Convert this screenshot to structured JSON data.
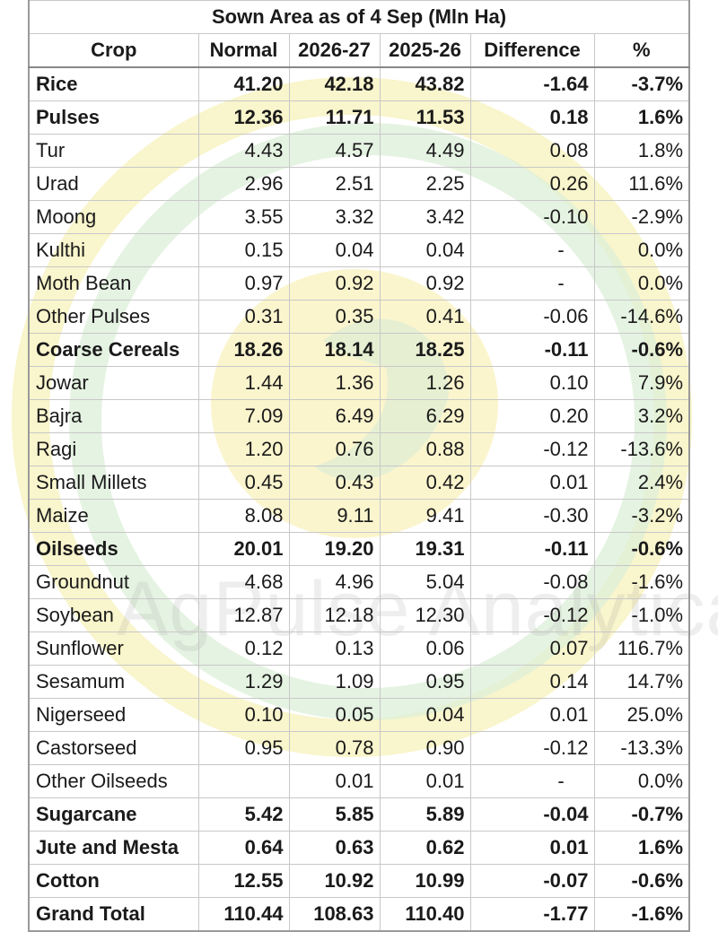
{
  "title": "Sown Area as of 4 Sep (Mln Ha)",
  "watermark": "AgPulse Analytica",
  "colors": {
    "watermark_yellow": "#f7eeab",
    "watermark_green": "#d9ecd2",
    "grid": "#c8c8c8"
  },
  "headers": {
    "crop": "Crop",
    "normal": "Normal",
    "y1": "2026-27",
    "y2": "2025-26",
    "diff": "Difference",
    "pct": "%"
  },
  "rows": [
    {
      "crop": "Rice",
      "normal": "41.20",
      "y1": "42.18",
      "y2": "43.82",
      "diff": "-1.64",
      "pct": "-3.7%",
      "bold": true
    },
    {
      "crop": "Pulses",
      "normal": "12.36",
      "y1": "11.71",
      "y2": "11.53",
      "diff": "0.18",
      "pct": "1.6%",
      "bold": true
    },
    {
      "crop": "Tur",
      "normal": "4.43",
      "y1": "4.57",
      "y2": "4.49",
      "diff": "0.08",
      "pct": "1.8%",
      "bold": false
    },
    {
      "crop": "Urad",
      "normal": "2.96",
      "y1": "2.51",
      "y2": "2.25",
      "diff": "0.26",
      "pct": "11.6%",
      "bold": false
    },
    {
      "crop": "Moong",
      "normal": "3.55",
      "y1": "3.32",
      "y2": "3.42",
      "diff": "-0.10",
      "pct": "-2.9%",
      "bold": false
    },
    {
      "crop": "Kulthi",
      "normal": "0.15",
      "y1": "0.04",
      "y2": "0.04",
      "diff": "-",
      "pct": "0.0%",
      "bold": false
    },
    {
      "crop": "Moth Bean",
      "normal": "0.97",
      "y1": "0.92",
      "y2": "0.92",
      "diff": "-",
      "pct": "0.0%",
      "bold": false
    },
    {
      "crop": "Other Pulses",
      "normal": "0.31",
      "y1": "0.35",
      "y2": "0.41",
      "diff": "-0.06",
      "pct": "-14.6%",
      "bold": false
    },
    {
      "crop": "Coarse Cereals",
      "normal": "18.26",
      "y1": "18.14",
      "y2": "18.25",
      "diff": "-0.11",
      "pct": "-0.6%",
      "bold": true
    },
    {
      "crop": "Jowar",
      "normal": "1.44",
      "y1": "1.36",
      "y2": "1.26",
      "diff": "0.10",
      "pct": "7.9%",
      "bold": false
    },
    {
      "crop": "Bajra",
      "normal": "7.09",
      "y1": "6.49",
      "y2": "6.29",
      "diff": "0.20",
      "pct": "3.2%",
      "bold": false
    },
    {
      "crop": "Ragi",
      "normal": "1.20",
      "y1": "0.76",
      "y2": "0.88",
      "diff": "-0.12",
      "pct": "-13.6%",
      "bold": false
    },
    {
      "crop": "Small Millets",
      "normal": "0.45",
      "y1": "0.43",
      "y2": "0.42",
      "diff": "0.01",
      "pct": "2.4%",
      "bold": false
    },
    {
      "crop": "Maize",
      "normal": "8.08",
      "y1": "9.11",
      "y2": "9.41",
      "diff": "-0.30",
      "pct": "-3.2%",
      "bold": false
    },
    {
      "crop": "Oilseeds",
      "normal": "20.01",
      "y1": "19.20",
      "y2": "19.31",
      "diff": "-0.11",
      "pct": "-0.6%",
      "bold": true
    },
    {
      "crop": "Groundnut",
      "normal": "4.68",
      "y1": "4.96",
      "y2": "5.04",
      "diff": "-0.08",
      "pct": "-1.6%",
      "bold": false
    },
    {
      "crop": "Soybean",
      "normal": "12.87",
      "y1": "12.18",
      "y2": "12.30",
      "diff": "-0.12",
      "pct": "-1.0%",
      "bold": false
    },
    {
      "crop": "Sunflower",
      "normal": "0.12",
      "y1": "0.13",
      "y2": "0.06",
      "diff": "0.07",
      "pct": "116.7%",
      "bold": false
    },
    {
      "crop": "Sesamum",
      "normal": "1.29",
      "y1": "1.09",
      "y2": "0.95",
      "diff": "0.14",
      "pct": "14.7%",
      "bold": false
    },
    {
      "crop": "Nigerseed",
      "normal": "0.10",
      "y1": "0.05",
      "y2": "0.04",
      "diff": "0.01",
      "pct": "25.0%",
      "bold": false
    },
    {
      "crop": "Castorseed",
      "normal": "0.95",
      "y1": "0.78",
      "y2": "0.90",
      "diff": "-0.12",
      "pct": "-13.3%",
      "bold": false
    },
    {
      "crop": "Other Oilseeds",
      "normal": "",
      "y1": "0.01",
      "y2": "0.01",
      "diff": "-",
      "pct": "0.0%",
      "bold": false
    },
    {
      "crop": "Sugarcane",
      "normal": "5.42",
      "y1": "5.85",
      "y2": "5.89",
      "diff": "-0.04",
      "pct": "-0.7%",
      "bold": true
    },
    {
      "crop": "Jute and Mesta",
      "normal": "0.64",
      "y1": "0.63",
      "y2": "0.62",
      "diff": "0.01",
      "pct": "1.6%",
      "bold": true
    },
    {
      "crop": "Cotton",
      "normal": "12.55",
      "y1": "10.92",
      "y2": "10.99",
      "diff": "-0.07",
      "pct": "-0.6%",
      "bold": true
    },
    {
      "crop": "Grand Total",
      "normal": "110.44",
      "y1": "108.63",
      "y2": "110.40",
      "diff": "-1.77",
      "pct": "-1.6%",
      "bold": true,
      "total": true
    }
  ]
}
